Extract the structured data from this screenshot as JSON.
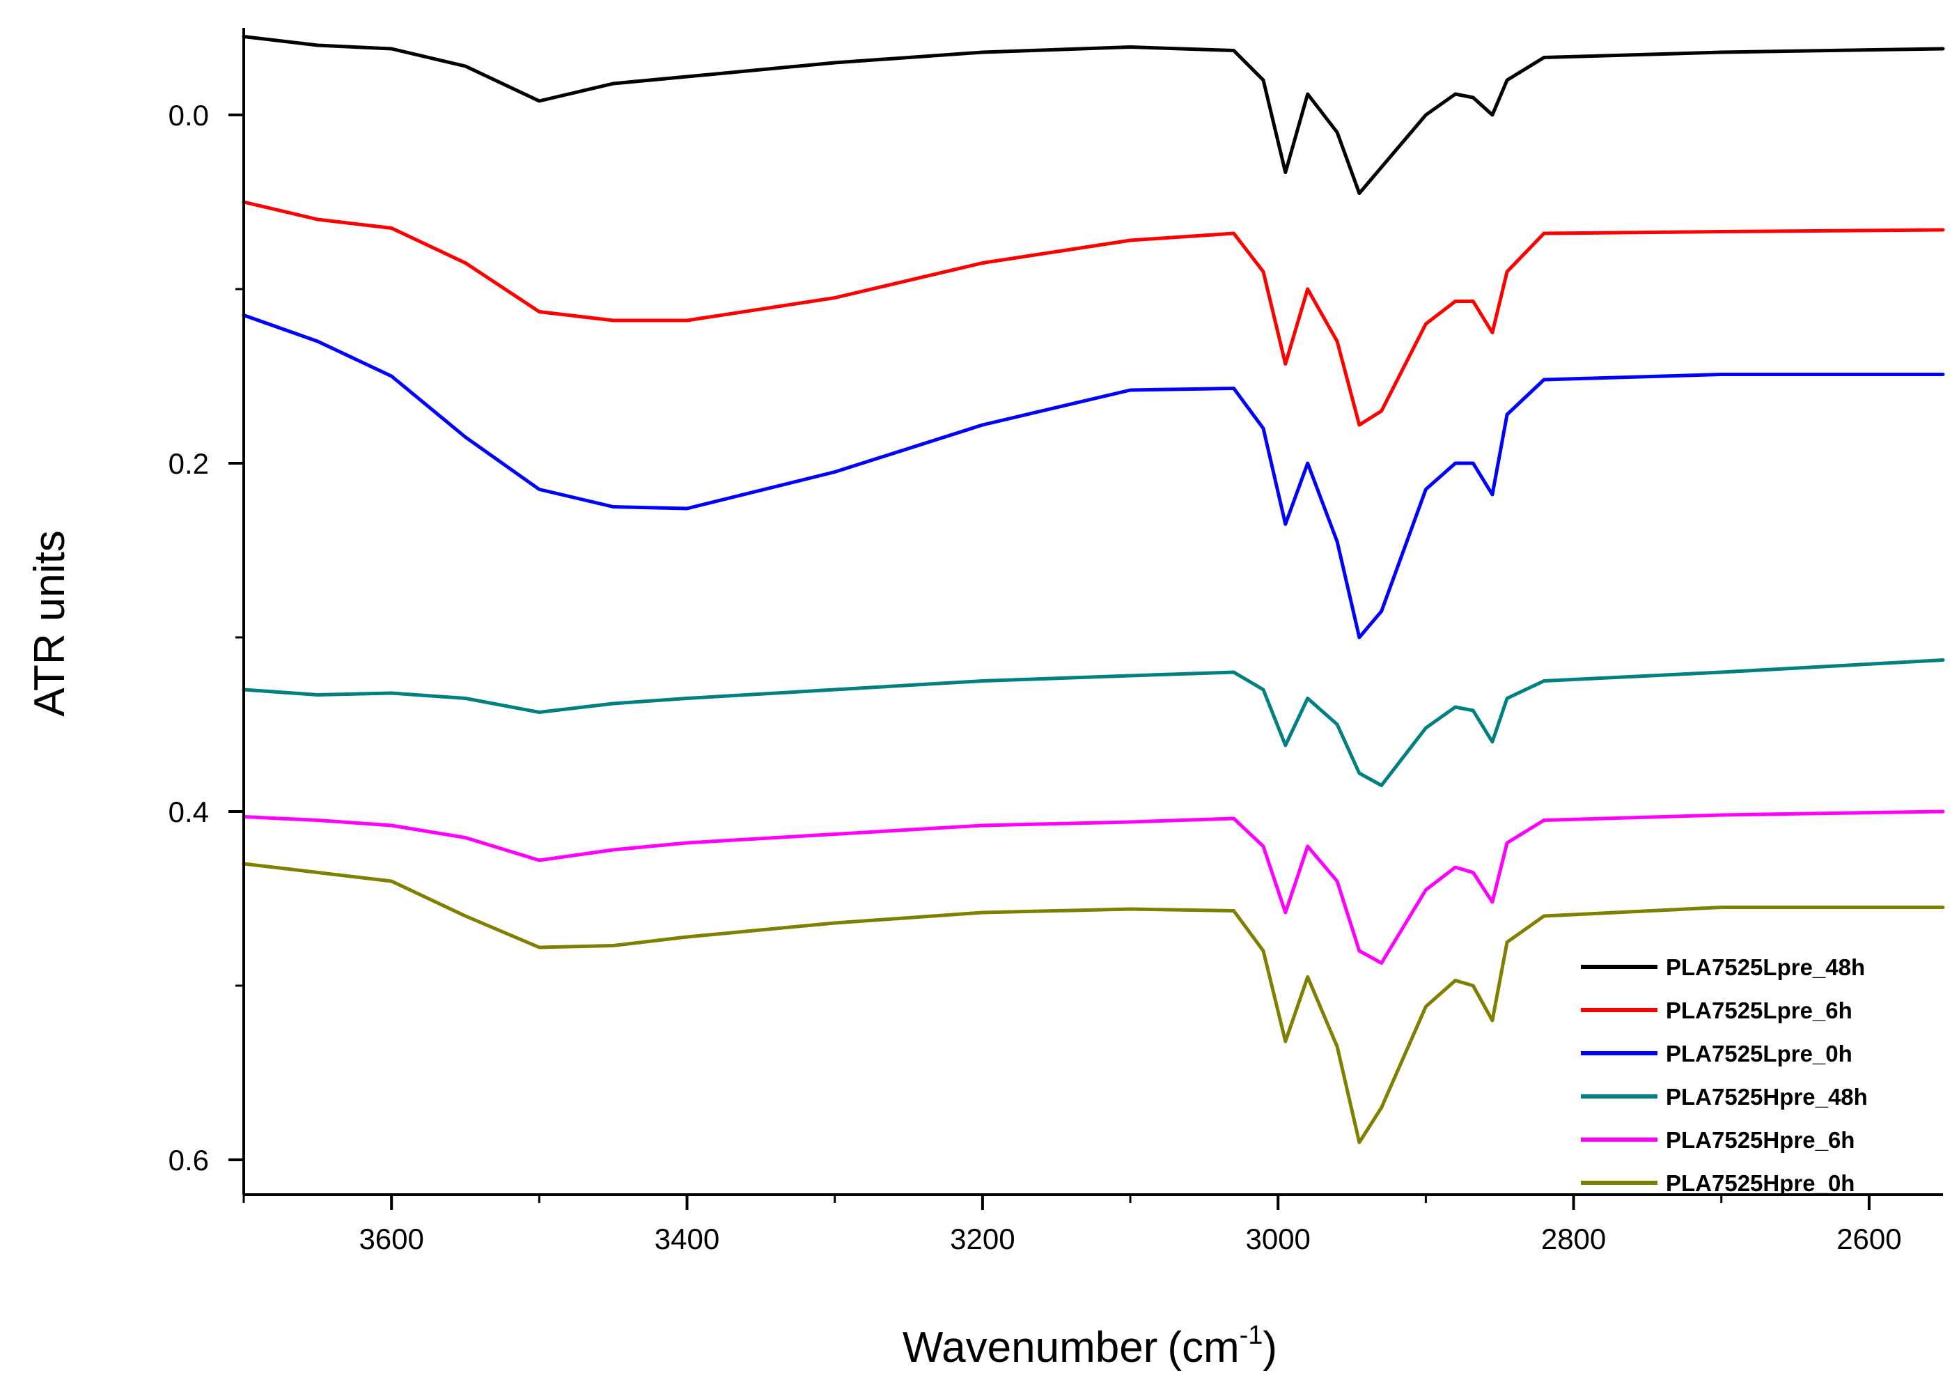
{
  "chart_data": {
    "type": "line",
    "title": "",
    "xlabel": "Wavenumber",
    "xlabel_unit_base": "(cm",
    "xlabel_unit_exp": "-1",
    "xlabel_unit_close": ")",
    "ylabel": "ATR units",
    "xlim": [
      3700,
      2550
    ],
    "ylim": [
      -0.05,
      0.62
    ],
    "x_ticks": [
      3600,
      3400,
      3200,
      3000,
      2800,
      2600
    ],
    "x_tick_labels": [
      "3600",
      "3400",
      "3200",
      "3000",
      "2800",
      "2600"
    ],
    "y_ticks": [
      0.0,
      0.2,
      0.4,
      0.6
    ],
    "y_tick_labels": [
      "0.0",
      "0.2",
      "0.4",
      "0.6"
    ],
    "legend_position": "bottom-right",
    "series": [
      {
        "name": "PLA7525Lpre_48h",
        "color": "#000000",
        "x": [
          3700,
          3650,
          3600,
          3550,
          3500,
          3450,
          3400,
          3300,
          3200,
          3100,
          3030,
          3010,
          2995,
          2980,
          2960,
          2945,
          2930,
          2900,
          2880,
          2868,
          2855,
          2845,
          2820,
          2700,
          2550
        ],
        "y": [
          -0.045,
          -0.04,
          -0.038,
          -0.028,
          -0.008,
          -0.018,
          -0.022,
          -0.03,
          -0.036,
          -0.039,
          -0.037,
          -0.02,
          0.033,
          -0.012,
          0.01,
          0.045,
          0.03,
          0.0,
          -0.012,
          -0.01,
          0.0,
          -0.02,
          -0.033,
          -0.036,
          -0.038
        ]
      },
      {
        "name": "PLA7525Lpre_6h",
        "color": "#ff0000",
        "x": [
          3700,
          3650,
          3600,
          3550,
          3500,
          3450,
          3400,
          3300,
          3200,
          3100,
          3030,
          3010,
          2995,
          2980,
          2960,
          2945,
          2930,
          2900,
          2880,
          2868,
          2855,
          2845,
          2820,
          2700,
          2550
        ],
        "y": [
          0.05,
          0.06,
          0.065,
          0.085,
          0.113,
          0.118,
          0.118,
          0.105,
          0.085,
          0.072,
          0.068,
          0.09,
          0.143,
          0.1,
          0.13,
          0.178,
          0.17,
          0.12,
          0.107,
          0.107,
          0.125,
          0.09,
          0.068,
          0.067,
          0.066
        ]
      },
      {
        "name": "PLA7525Lpre_0h",
        "color": "#0000ff",
        "x": [
          3700,
          3650,
          3600,
          3550,
          3500,
          3450,
          3400,
          3300,
          3200,
          3100,
          3030,
          3010,
          2995,
          2980,
          2960,
          2945,
          2930,
          2900,
          2880,
          2868,
          2855,
          2845,
          2820,
          2700,
          2550
        ],
        "y": [
          0.115,
          0.13,
          0.15,
          0.185,
          0.215,
          0.225,
          0.226,
          0.205,
          0.178,
          0.158,
          0.157,
          0.18,
          0.235,
          0.2,
          0.245,
          0.3,
          0.285,
          0.215,
          0.2,
          0.2,
          0.218,
          0.172,
          0.152,
          0.149,
          0.149
        ]
      },
      {
        "name": "PLA7525Hpre_48h",
        "color": "#008080",
        "x": [
          3700,
          3650,
          3600,
          3550,
          3500,
          3450,
          3400,
          3300,
          3200,
          3100,
          3030,
          3010,
          2995,
          2980,
          2960,
          2945,
          2930,
          2900,
          2880,
          2868,
          2855,
          2845,
          2820,
          2700,
          2550
        ],
        "y": [
          0.33,
          0.333,
          0.332,
          0.335,
          0.343,
          0.338,
          0.335,
          0.33,
          0.325,
          0.322,
          0.32,
          0.33,
          0.362,
          0.335,
          0.35,
          0.378,
          0.385,
          0.352,
          0.34,
          0.342,
          0.36,
          0.335,
          0.325,
          0.32,
          0.313
        ]
      },
      {
        "name": "PLA7525Hpre_6h",
        "color": "#ff00ff",
        "x": [
          3700,
          3650,
          3600,
          3550,
          3500,
          3450,
          3400,
          3300,
          3200,
          3100,
          3030,
          3010,
          2995,
          2980,
          2960,
          2945,
          2930,
          2900,
          2880,
          2868,
          2855,
          2845,
          2820,
          2700,
          2550
        ],
        "y": [
          0.403,
          0.405,
          0.408,
          0.415,
          0.428,
          0.422,
          0.418,
          0.413,
          0.408,
          0.406,
          0.404,
          0.42,
          0.458,
          0.42,
          0.44,
          0.48,
          0.487,
          0.445,
          0.432,
          0.435,
          0.452,
          0.418,
          0.405,
          0.402,
          0.4
        ]
      },
      {
        "name": "PLA7525Hpre_0h",
        "color": "#808000",
        "x": [
          3700,
          3650,
          3600,
          3550,
          3500,
          3450,
          3400,
          3300,
          3200,
          3100,
          3030,
          3010,
          2995,
          2980,
          2960,
          2945,
          2930,
          2900,
          2880,
          2868,
          2855,
          2845,
          2820,
          2700,
          2550
        ],
        "y": [
          0.43,
          0.435,
          0.44,
          0.46,
          0.478,
          0.477,
          0.472,
          0.464,
          0.458,
          0.456,
          0.457,
          0.48,
          0.532,
          0.495,
          0.535,
          0.59,
          0.57,
          0.512,
          0.497,
          0.5,
          0.52,
          0.475,
          0.46,
          0.455,
          0.455
        ]
      }
    ]
  }
}
